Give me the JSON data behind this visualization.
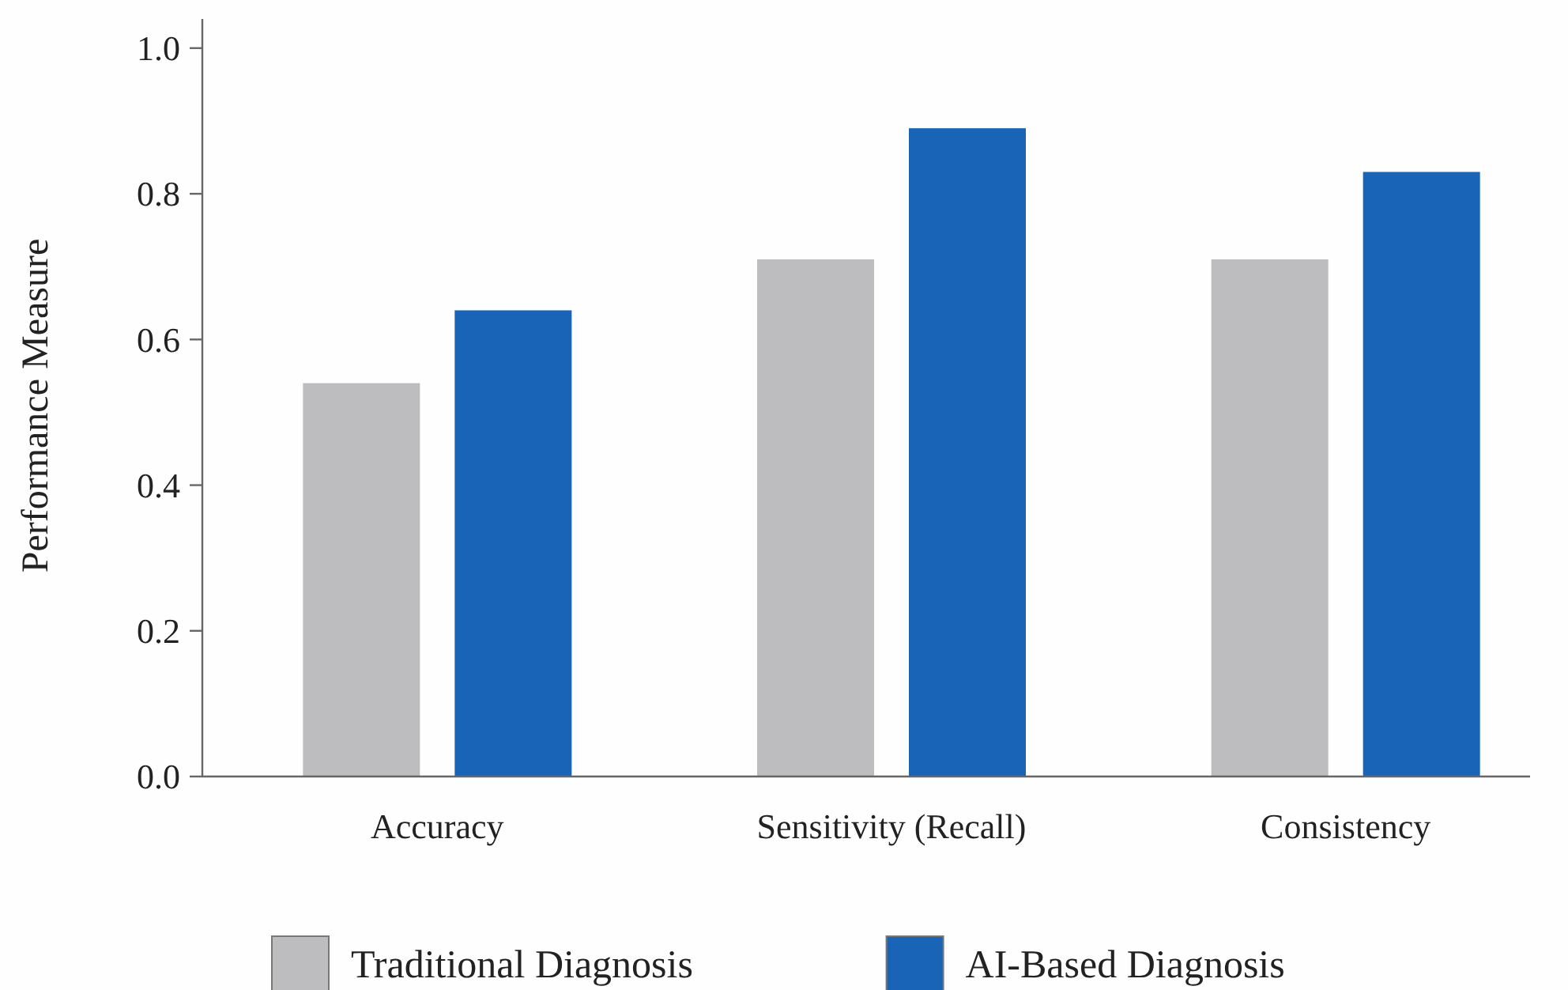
{
  "chart_data": {
    "type": "bar",
    "ylabel": "Performance Measure",
    "categories": [
      "Accuracy",
      "Sensitivity (Recall)",
      "Consistency"
    ],
    "series": [
      {
        "name": "Traditional Diagnosis",
        "color": "#bdbdc0",
        "values": [
          0.54,
          0.71,
          0.71
        ]
      },
      {
        "name": "AI-Based Diagnosis",
        "color": "#1a64b8",
        "values": [
          0.64,
          0.89,
          0.83
        ]
      }
    ],
    "ylim": [
      0,
      1.04
    ],
    "yticks": [
      {
        "value": 0,
        "label": "0.0"
      },
      0.2,
      0.4,
      0.6,
      0.8,
      {
        "value": 1,
        "label": "1.0"
      }
    ],
    "grid": false,
    "legend": "bottom"
  }
}
